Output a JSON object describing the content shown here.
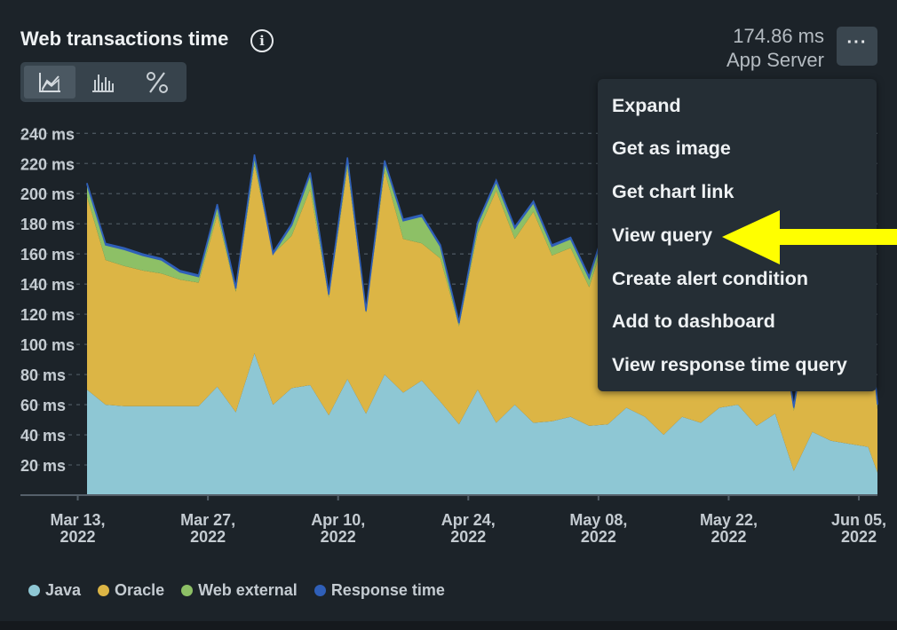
{
  "widget": {
    "title": "Web transactions time",
    "summary_value": "174.86 ms",
    "summary_label": "App Server"
  },
  "view_toggle": [
    {
      "icon": "area-chart-icon",
      "active": true
    },
    {
      "icon": "bar-chart-icon",
      "active": false
    },
    {
      "icon": "percent-icon",
      "active": false
    }
  ],
  "menu": {
    "items": [
      "Expand",
      "Get as image",
      "Get chart link",
      "View query",
      "Create alert condition",
      "Add to dashboard",
      "View response time query"
    ]
  },
  "colors": {
    "java": "#8ec7d4",
    "oracle": "#dcb545",
    "web_external": "#8dc066",
    "response_time": "#2f5fb8",
    "highlight_arrow": "#ffff00"
  },
  "chart_data": {
    "type": "area",
    "stacked": true,
    "ylim": [
      0,
      250
    ],
    "yticks": [
      "20 ms",
      "40 ms",
      "60 ms",
      "80 ms",
      "100 ms",
      "120 ms",
      "140 ms",
      "160 ms",
      "180 ms",
      "200 ms",
      "220 ms",
      "240 ms"
    ],
    "ytick_values": [
      20,
      40,
      60,
      80,
      100,
      120,
      140,
      160,
      180,
      200,
      220,
      240
    ],
    "xticks": [
      {
        "label": [
          "Mar 13,",
          "2022"
        ],
        "date": "2022-03-13"
      },
      {
        "label": [
          "Mar 27,",
          "2022"
        ],
        "date": "2022-03-27"
      },
      {
        "label": [
          "Apr 10,",
          "2022"
        ],
        "date": "2022-04-10"
      },
      {
        "label": [
          "Apr 24,",
          "2022"
        ],
        "date": "2022-04-24"
      },
      {
        "label": [
          "May 08,",
          "2022"
        ],
        "date": "2022-05-08"
      },
      {
        "label": [
          "May 22,",
          "2022"
        ],
        "date": "2022-05-22"
      },
      {
        "label": [
          "Jun 05,",
          "2022"
        ],
        "date": "2022-06-05"
      }
    ],
    "x": [
      "2022-03-14",
      "2022-03-16",
      "2022-03-18",
      "2022-03-20",
      "2022-03-22",
      "2022-03-24",
      "2022-03-26",
      "2022-03-28",
      "2022-03-30",
      "2022-04-01",
      "2022-04-03",
      "2022-04-05",
      "2022-04-07",
      "2022-04-09",
      "2022-04-11",
      "2022-04-13",
      "2022-04-15",
      "2022-04-17",
      "2022-04-19",
      "2022-04-21",
      "2022-04-23",
      "2022-04-25",
      "2022-04-27",
      "2022-04-29",
      "2022-05-01",
      "2022-05-03",
      "2022-05-05",
      "2022-05-07",
      "2022-05-09",
      "2022-05-11",
      "2022-05-13",
      "2022-05-15",
      "2022-05-17",
      "2022-05-19",
      "2022-05-21",
      "2022-05-23",
      "2022-05-25",
      "2022-05-27",
      "2022-05-29",
      "2022-05-31",
      "2022-06-02",
      "2022-06-04",
      "2022-06-06",
      "2022-06-07"
    ],
    "series": [
      {
        "name": "Java",
        "values": [
          70,
          60,
          59,
          59,
          59,
          59,
          59,
          72,
          55,
          94,
          60,
          71,
          73,
          53,
          77,
          54,
          80,
          68,
          76,
          62,
          47,
          70,
          48,
          60,
          48,
          49,
          52,
          46,
          47,
          58,
          52,
          40,
          52,
          48,
          58,
          60,
          46,
          54,
          16,
          42,
          36,
          34,
          32,
          15
        ]
      },
      {
        "name": "Oracle",
        "values": [
          128,
          96,
          93,
          90,
          88,
          84,
          82,
          114,
          80,
          125,
          100,
          101,
          130,
          78,
          140,
          67,
          135,
          102,
          91,
          95,
          65,
          104,
          154,
          110,
          140,
          110,
          112,
          92,
          130,
          98,
          112,
          119,
          56,
          56,
          122,
          55,
          100,
          78,
          40,
          88,
          84,
          92,
          90,
          42
        ]
      },
      {
        "name": "Web external",
        "values": [
          8,
          10,
          11,
          10,
          9,
          5,
          4,
          6,
          2,
          6,
          0,
          7,
          10,
          2,
          6,
          1,
          6,
          12,
          18,
          8,
          2,
          6,
          6,
          7,
          6,
          6,
          6,
          6,
          6,
          6,
          6,
          6,
          6,
          6,
          4,
          5,
          6,
          4,
          2,
          4,
          4,
          3,
          3,
          3
        ]
      },
      {
        "name": "Response time",
        "values": [
          1,
          1,
          1,
          1,
          1,
          1,
          1,
          1,
          1,
          1,
          1,
          1,
          1,
          1,
          1,
          1,
          1,
          1,
          1,
          1,
          1,
          1,
          1,
          1,
          1,
          1,
          1,
          1,
          1,
          1,
          1,
          1,
          1,
          1,
          1,
          1,
          1,
          1,
          1,
          1,
          1,
          1,
          1,
          1
        ]
      }
    ]
  },
  "legend": [
    {
      "name": "Java",
      "color": "#8ec7d4"
    },
    {
      "name": "Oracle",
      "color": "#dcb545"
    },
    {
      "name": "Web external",
      "color": "#8dc066"
    },
    {
      "name": "Response time",
      "color": "#2f5fb8"
    }
  ]
}
